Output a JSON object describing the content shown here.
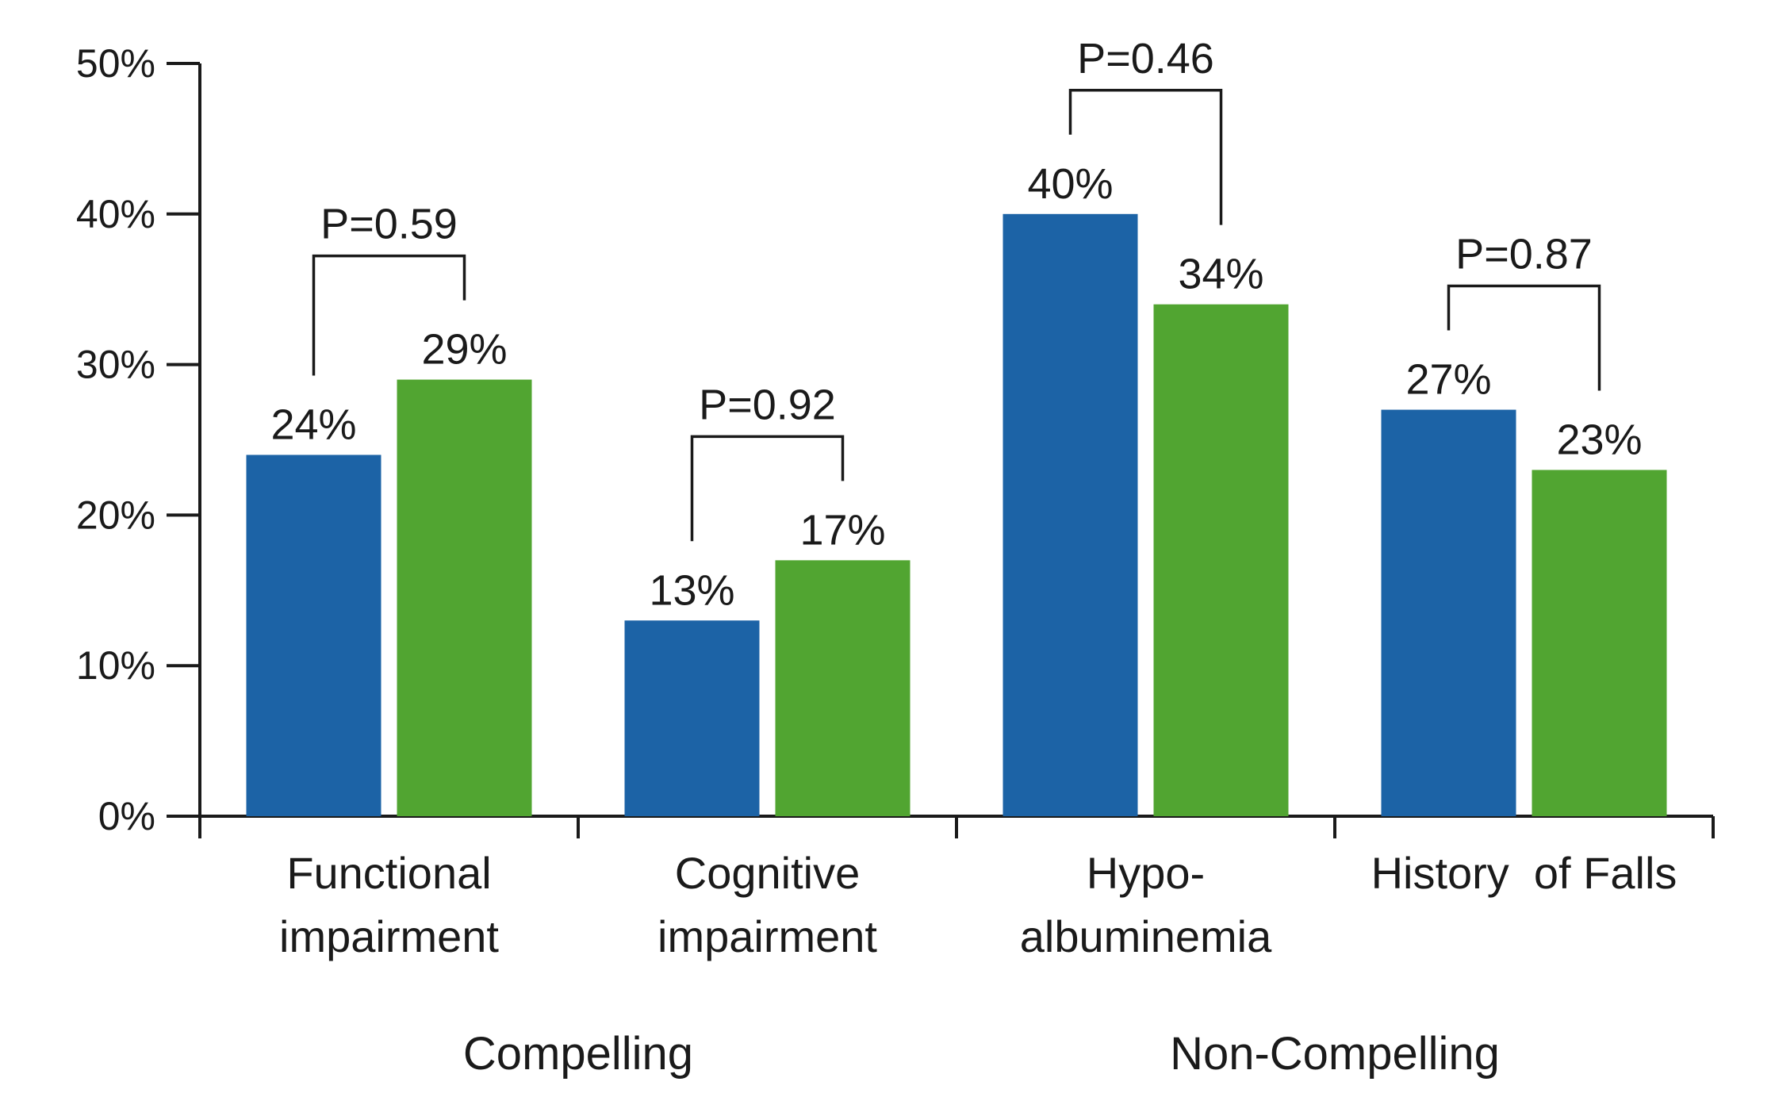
{
  "chart_data": {
    "type": "bar",
    "categories": [
      [
        "Functional",
        "impairment"
      ],
      [
        "Cognitive",
        "impairment"
      ],
      [
        "Hypo-",
        "albuminemia"
      ],
      [
        "History  of Falls"
      ]
    ],
    "series": [
      {
        "color": "#1c63a6",
        "values": [
          24,
          13,
          40,
          27
        ]
      },
      {
        "color": "#51a531",
        "values": [
          29,
          17,
          34,
          23
        ]
      }
    ],
    "value_labels": [
      [
        "24%",
        "13%",
        "40%",
        "27%"
      ],
      [
        "29%",
        "17%",
        "34%",
        "23%"
      ]
    ],
    "p_values": [
      "P=0.59",
      "P=0.92",
      "P=0.46",
      "P=0.87"
    ],
    "groups": [
      {
        "label": "Compelling",
        "categories": [
          0,
          1
        ]
      },
      {
        "label": "Non-Compelling",
        "categories": [
          2,
          3
        ]
      }
    ],
    "yticks": [
      "0%",
      "10%",
      "20%",
      "30%",
      "40%",
      "50%"
    ],
    "ylim": [
      0,
      50
    ],
    "grid": false,
    "title": "",
    "xlabel": "",
    "ylabel": ""
  }
}
